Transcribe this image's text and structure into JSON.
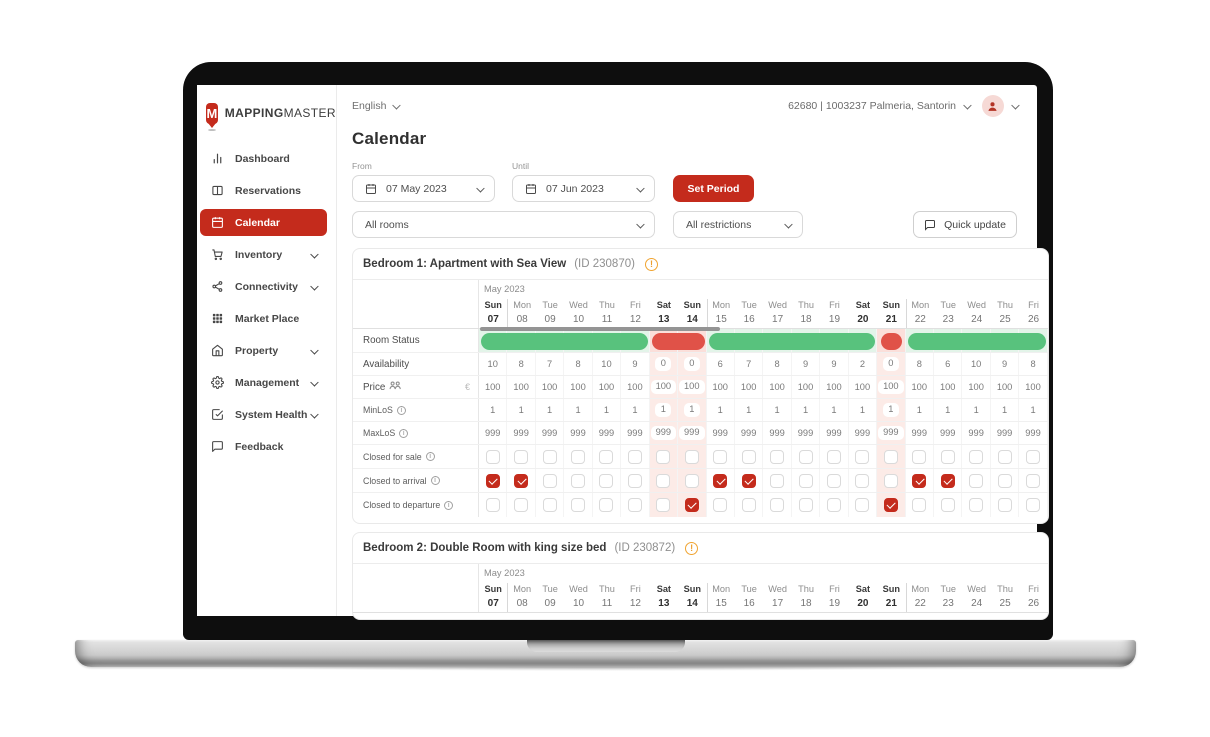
{
  "sidebar": {
    "logo": {
      "letter": "M",
      "brand_bold": "MAPPING",
      "brand_light": "MASTER"
    },
    "items": [
      {
        "label": "Dashboard",
        "icon": "bar-chart-icon",
        "active": false,
        "chevron": false
      },
      {
        "label": "Reservations",
        "icon": "book-icon",
        "active": false,
        "chevron": false
      },
      {
        "label": "Calendar",
        "icon": "calendar-icon",
        "active": true,
        "chevron": false
      },
      {
        "label": "Inventory",
        "icon": "cart-icon",
        "active": false,
        "chevron": true
      },
      {
        "label": "Connectivity",
        "icon": "share-icon",
        "active": false,
        "chevron": true
      },
      {
        "label": "Market Place",
        "icon": "grid-icon",
        "active": false,
        "chevron": false
      },
      {
        "label": "Property",
        "icon": "home-icon",
        "active": false,
        "chevron": true
      },
      {
        "label": "Management",
        "icon": "gear-icon",
        "active": false,
        "chevron": true
      },
      {
        "label": "System Health",
        "icon": "check-square-icon",
        "active": false,
        "chevron": true
      },
      {
        "label": "Feedback",
        "icon": "chat-icon",
        "active": false,
        "chevron": false
      }
    ]
  },
  "topbar": {
    "language": "English",
    "account_text": "62680 | 1003237  Palmeria, Santorin"
  },
  "page_title": "Calendar",
  "filters": {
    "from_label": "From",
    "from_value": "07 May 2023",
    "until_label": "Until",
    "until_value": "07 Jun 2023",
    "set_period_label": "Set Period",
    "rooms_value": "All rooms",
    "restrictions_value": "All restrictions",
    "quick_update_label": "Quick update"
  },
  "calendar": {
    "month_label": "May 2023",
    "days": [
      {
        "dow": "Sun",
        "num": "07"
      },
      {
        "dow": "Mon",
        "num": "08"
      },
      {
        "dow": "Tue",
        "num": "09"
      },
      {
        "dow": "Wed",
        "num": "10"
      },
      {
        "dow": "Thu",
        "num": "11"
      },
      {
        "dow": "Fri",
        "num": "12"
      },
      {
        "dow": "Sat",
        "num": "13"
      },
      {
        "dow": "Sun",
        "num": "14"
      },
      {
        "dow": "Mon",
        "num": "15"
      },
      {
        "dow": "Tue",
        "num": "16"
      },
      {
        "dow": "Wed",
        "num": "17"
      },
      {
        "dow": "Thu",
        "num": "18"
      },
      {
        "dow": "Fri",
        "num": "19"
      },
      {
        "dow": "Sat",
        "num": "20"
      },
      {
        "dow": "Sun",
        "num": "21"
      },
      {
        "dow": "Mon",
        "num": "22"
      },
      {
        "dow": "Tue",
        "num": "23"
      },
      {
        "dow": "Wed",
        "num": "24"
      },
      {
        "dow": "Thu",
        "num": "25"
      },
      {
        "dow": "Fri",
        "num": "26"
      }
    ],
    "weekend_indices": [
      0,
      6,
      7,
      13,
      14
    ],
    "week_start_indices": [
      1,
      8,
      15
    ],
    "rooms": [
      {
        "title": "Bedroom 1: Apartment with Sea View",
        "id_label": "(ID 230870)",
        "header_only": false,
        "closed_day_indices": [
          6,
          7,
          14
        ],
        "status_label": "Room Status",
        "status_segments": [
          {
            "state": "open",
            "from": 0,
            "to": 5
          },
          {
            "state": "closed",
            "from": 6,
            "to": 7
          },
          {
            "state": "open",
            "from": 8,
            "to": 13
          },
          {
            "state": "closed",
            "from": 14,
            "to": 14
          },
          {
            "state": "open",
            "from": 15,
            "to": 19
          }
        ],
        "rows": [
          {
            "key": "availability",
            "label": "Availability",
            "type": "values",
            "big": true,
            "values": [
              "10",
              "8",
              "7",
              "8",
              "10",
              "9",
              "0",
              "0",
              "6",
              "7",
              "8",
              "9",
              "9",
              "2",
              "0",
              "8",
              "6",
              "10",
              "9",
              "8"
            ]
          },
          {
            "key": "price",
            "label": "Price",
            "type": "values",
            "big": true,
            "occupancy_icon": true,
            "currency": "€",
            "values": [
              "100",
              "100",
              "100",
              "100",
              "100",
              "100",
              "100",
              "100",
              "100",
              "100",
              "100",
              "100",
              "100",
              "100",
              "100",
              "100",
              "100",
              "100",
              "100",
              "100"
            ]
          },
          {
            "key": "minlos",
            "label": "MinLoS",
            "type": "values",
            "info": true,
            "values": [
              "1",
              "1",
              "1",
              "1",
              "1",
              "1",
              "1",
              "1",
              "1",
              "1",
              "1",
              "1",
              "1",
              "1",
              "1",
              "1",
              "1",
              "1",
              "1",
              "1"
            ]
          },
          {
            "key": "maxlos",
            "label": "MaxLoS",
            "type": "values",
            "info": true,
            "values": [
              "999",
              "999",
              "999",
              "999",
              "999",
              "999",
              "999",
              "999",
              "999",
              "999",
              "999",
              "999",
              "999",
              "999",
              "999",
              "999",
              "999",
              "999",
              "999",
              "999"
            ]
          },
          {
            "key": "closed_for_sale",
            "label": "Closed for sale",
            "type": "checkbox",
            "info": true,
            "checked_indices": []
          },
          {
            "key": "closed_to_arrival",
            "label": "Closed to arrival",
            "type": "checkbox",
            "info": true,
            "checked_indices": [
              0,
              1,
              8,
              9,
              15,
              16
            ]
          },
          {
            "key": "closed_to_departure",
            "label": "Closed to departure",
            "type": "checkbox",
            "info": true,
            "checked_indices": [
              7,
              14
            ]
          }
        ]
      },
      {
        "title": "Bedroom 2: Double Room with king size bed",
        "id_label": "(ID 230872)",
        "header_only": true
      }
    ]
  },
  "colors": {
    "accent_red": "#c42b1c",
    "status_green": "#58c27d",
    "status_red": "#e05248",
    "closed_col_tint": "#fcebe7",
    "open_tint": "#e3f4e9",
    "warning_orange": "#f0a431"
  }
}
